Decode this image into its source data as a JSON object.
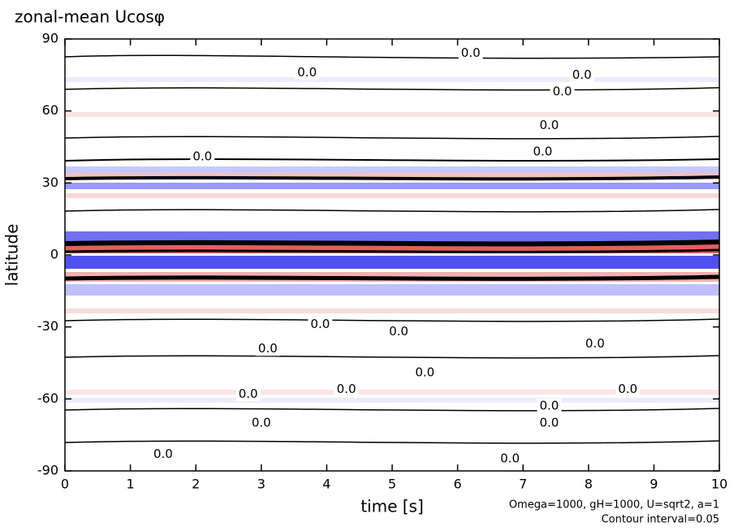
{
  "chart_data": {
    "type": "contour",
    "title": "zonal-mean Ucosφ",
    "x_label": "time [s]",
    "y_label": "latitude",
    "annotations": [
      "Omega=1000, gH=1000, U=sqrt2, a=1",
      "Contour interval=0.05"
    ],
    "xlim": [
      0,
      10
    ],
    "xticks": [
      0,
      1,
      2,
      3,
      4,
      5,
      6,
      7,
      8,
      9,
      10
    ],
    "ylim": [
      -90,
      90
    ],
    "yticks": [
      -90,
      -60,
      -30,
      0,
      30,
      60,
      90
    ],
    "contour_labels": {
      "x": [
        6.2,
        3.7,
        7.9,
        7.6,
        7.4,
        7.3,
        2.1,
        3.9,
        5.1,
        8.1,
        3.1,
        5.5,
        4.3,
        2.8,
        8.6,
        7.4,
        7.4,
        3.0,
        1.5,
        6.8
      ],
      "y": [
        84,
        76,
        75,
        68,
        54,
        43,
        41,
        -29,
        -32,
        -37,
        -39,
        -49,
        -56,
        -58,
        -56,
        -63,
        -70,
        -70,
        -83,
        -85
      ],
      "labels": [
        "0.0",
        "0.0",
        "0.0",
        "0.0",
        "0.0",
        "0.0",
        "0.0",
        "0.0",
        "0.0",
        "0.0",
        "0.0",
        "0.0",
        "0.0",
        "0.0",
        "0.0",
        "0.0",
        "0.0",
        "0.0",
        "0.0",
        "0.0"
      ]
    }
  }
}
